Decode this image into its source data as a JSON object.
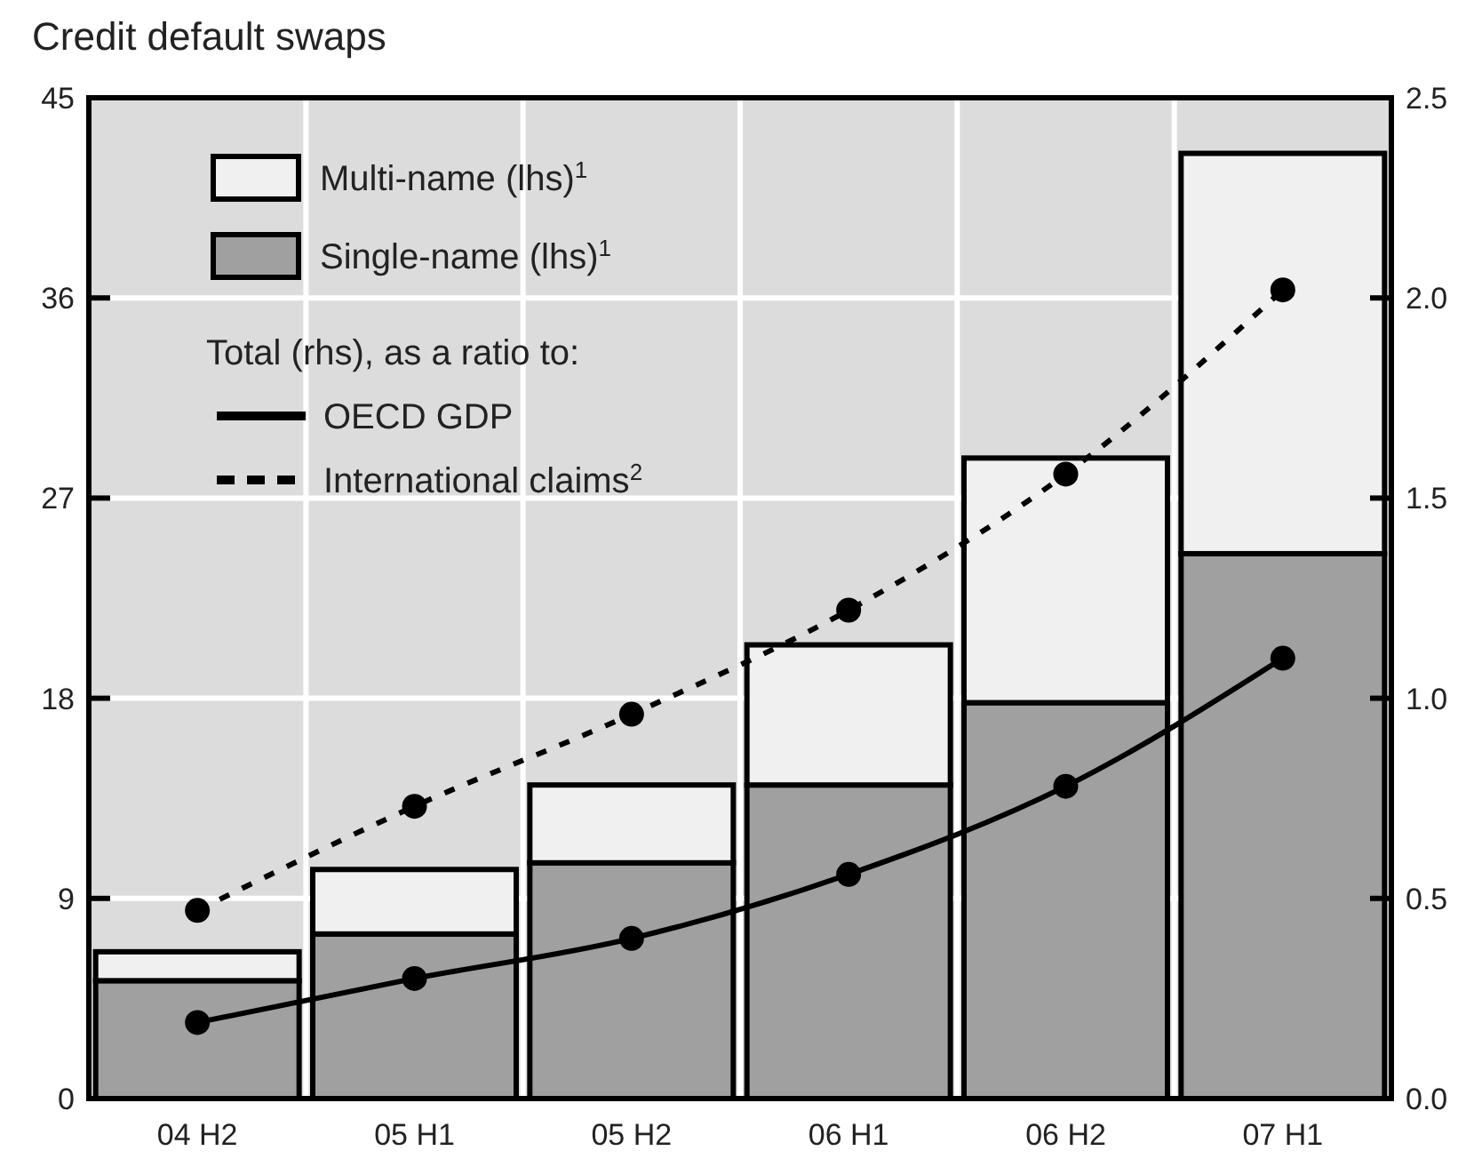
{
  "chart_data": {
    "type": "bar",
    "title": "Credit default swaps",
    "stacked": true,
    "grid": true,
    "legend": "top left",
    "marker": "circle",
    "categories": [
      "04 H2",
      "05 H1",
      "05 H2",
      "06 H1",
      "06 H2",
      "07 H1"
    ],
    "ylim": [
      0,
      45
    ],
    "yticks": [
      0,
      9,
      18,
      27,
      36,
      45
    ],
    "y2lim": [
      0,
      2.5
    ],
    "y2ticks": [
      {
        "value": 0,
        "label": "0.0"
      },
      {
        "value": 0.5,
        "label": "0.5"
      },
      {
        "value": 1,
        "label": "1.0"
      },
      {
        "value": 1.5,
        "label": "1.5"
      },
      {
        "value": 2,
        "label": "2.0"
      },
      {
        "value": 2.5,
        "label": "2.5"
      }
    ],
    "annotations": [
      "Total (rhs), as a ratio to:"
    ],
    "series": [
      {
        "name": "Single-name (lhs)$^{1}$",
        "color": "#a0a0a0",
        "values": [
          5.3,
          7.4,
          10.6,
          14.1,
          17.8,
          24.5
        ]
      },
      {
        "name": "Multi-name (lhs)$^{1}$",
        "color": "#f0f0f0",
        "values": [
          1.3,
          2.9,
          3.5,
          6.3,
          11.0,
          18.0
        ]
      },
      {
        "name": "OECD GDP",
        "type": "line",
        "axis": "y2",
        "color": "#000000",
        "line_style": "solid",
        "values": [
          0.19,
          0.3,
          0.4,
          0.56,
          0.78,
          1.1
        ]
      },
      {
        "name": "International claims$^{2}$",
        "type": "line",
        "axis": "y2",
        "color": "#000000",
        "line_style": "dashed",
        "values": [
          0.47,
          0.73,
          0.96,
          1.22,
          1.56,
          2.02
        ]
      }
    ]
  }
}
